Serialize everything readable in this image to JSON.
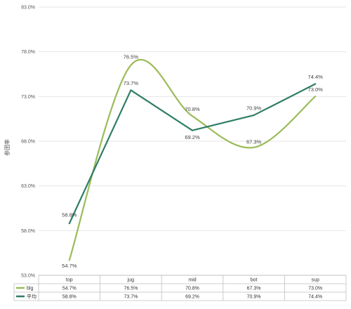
{
  "chart_data": {
    "type": "line",
    "ylabel": "参团率",
    "ylim": [
      53.0,
      83.0
    ],
    "yticks": [
      "83.0%",
      "78.0%",
      "73.0%",
      "68.0%",
      "63.0%",
      "58.0%",
      "53.0%"
    ],
    "ytick_values": [
      83,
      78,
      73,
      68,
      63,
      58,
      53
    ],
    "categories": [
      "top",
      "jug",
      "mid",
      "bot",
      "sup"
    ],
    "grid": true,
    "data_table": true,
    "series": [
      {
        "name": "blg",
        "values": [
          54.7,
          76.5,
          70.8,
          67.3,
          73.0
        ],
        "labels": [
          "54.7%",
          "76.5%",
          "70.8%",
          "67.3%",
          "73.0%"
        ],
        "color": "#9BBB59",
        "smooth": true
      },
      {
        "name": "平均",
        "values": [
          58.8,
          73.7,
          69.2,
          70.9,
          74.4
        ],
        "labels": [
          "58.8%",
          "73.7%",
          "69.2%",
          "70.9%",
          "74.4%"
        ],
        "color": "#2E7D64",
        "smooth": false
      }
    ]
  }
}
